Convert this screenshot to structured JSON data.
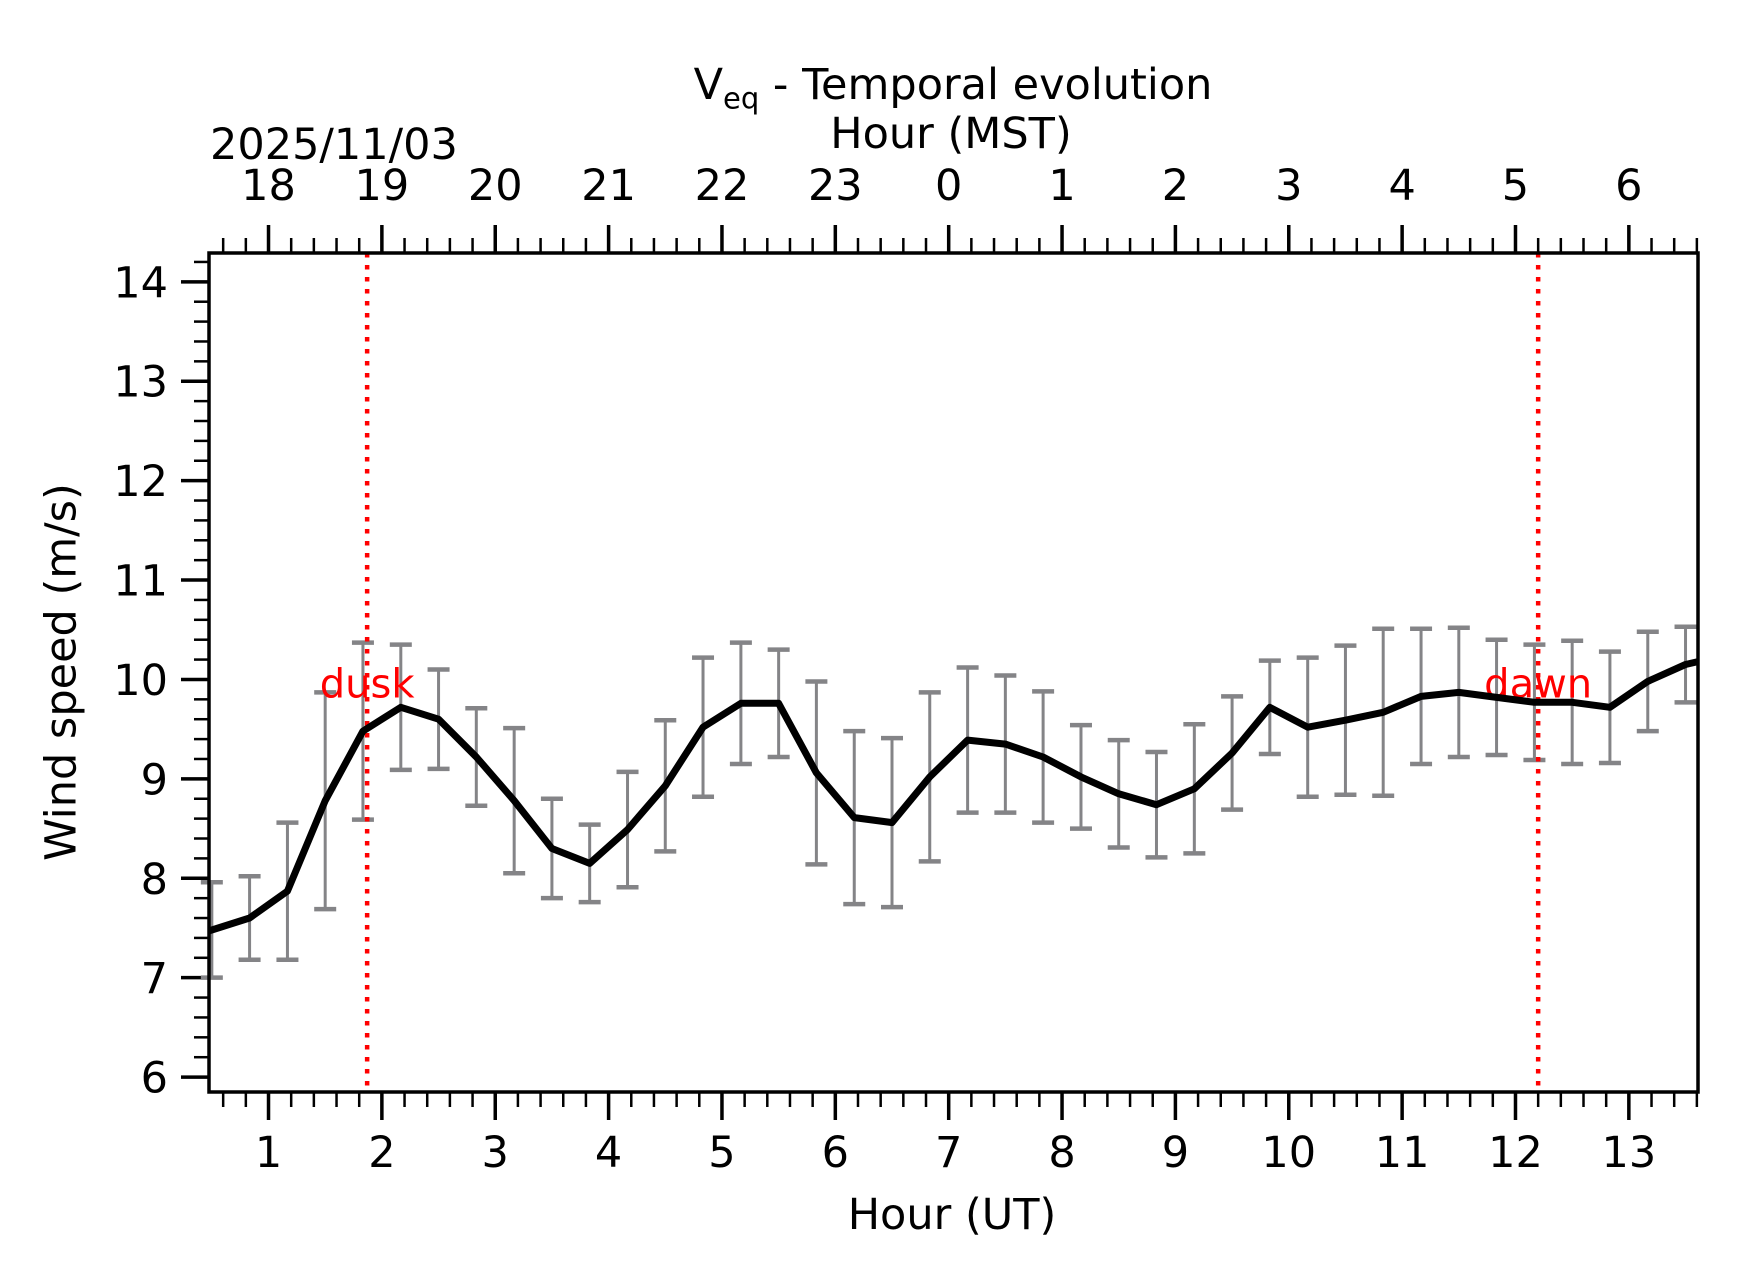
{
  "figure": {
    "title": {
      "prefix": "V",
      "subscript": "eq",
      "suffix": " - Temporal evolution"
    },
    "date_label": "2025/11/03",
    "top_axis_label": "Hour (MST)",
    "bottom_axis_label": "Hour (UT)",
    "y_axis_label": "Wind speed (m/s)"
  },
  "chart_data": {
    "type": "line",
    "title": "V_eq - Temporal evolution",
    "date": "2025/11/03",
    "xlabel": "Hour (UT)",
    "x2label": "Hour (MST)",
    "ylabel": "Wind speed (m/s)",
    "xlim": [
      0.475,
      13.61
    ],
    "ylim": [
      5.85,
      14.29
    ],
    "grid": false,
    "legend": null,
    "xticks": [
      1,
      2,
      3,
      4,
      5,
      6,
      7,
      8,
      9,
      10,
      11,
      12,
      13
    ],
    "xtick_labels_bottom": [
      "1",
      "2",
      "3",
      "4",
      "5",
      "6",
      "7",
      "8",
      "9",
      "10",
      "11",
      "12",
      "13"
    ],
    "xtick_labels_top": [
      "18",
      "19",
      "20",
      "21",
      "22",
      "23",
      "0",
      "1",
      "2",
      "3",
      "4",
      "5",
      "6"
    ],
    "yticks": [
      6,
      7,
      8,
      9,
      10,
      11,
      12,
      13,
      14
    ],
    "ytick_labels": [
      "6",
      "7",
      "8",
      "9",
      "10",
      "11",
      "12",
      "13",
      "14"
    ],
    "minor_tick_step_x": 0.2,
    "minor_tick_step_y": 0.2,
    "x": [
      0.5,
      0.833,
      1.167,
      1.5,
      1.833,
      2.167,
      2.5,
      2.833,
      3.167,
      3.5,
      3.833,
      4.167,
      4.5,
      4.833,
      5.167,
      5.5,
      5.833,
      6.167,
      6.5,
      6.833,
      7.167,
      7.5,
      7.833,
      8.167,
      8.5,
      8.833,
      9.167,
      9.5,
      9.833,
      10.167,
      10.5,
      10.833,
      11.167,
      11.5,
      11.833,
      12.167,
      12.5,
      12.833,
      13.167,
      13.5
    ],
    "y": [
      7.48,
      7.6,
      7.87,
      8.78,
      9.48,
      9.72,
      9.6,
      9.22,
      8.78,
      8.3,
      8.15,
      8.49,
      8.93,
      9.52,
      9.76,
      9.76,
      9.06,
      8.61,
      8.56,
      9.02,
      9.39,
      9.35,
      9.22,
      9.02,
      8.85,
      8.74,
      8.9,
      9.26,
      9.72,
      9.52,
      9.59,
      9.67,
      9.83,
      9.87,
      9.82,
      9.77,
      9.77,
      9.72,
      9.98,
      10.15
    ],
    "yerr": [
      0.48,
      0.42,
      0.69,
      1.09,
      0.89,
      0.63,
      0.5,
      0.49,
      0.73,
      0.5,
      0.39,
      0.58,
      0.66,
      0.7,
      0.61,
      0.54,
      0.92,
      0.87,
      0.85,
      0.85,
      0.73,
      0.69,
      0.66,
      0.52,
      0.54,
      0.53,
      0.65,
      0.57,
      0.47,
      0.7,
      0.75,
      0.84,
      0.68,
      0.65,
      0.58,
      0.58,
      0.62,
      0.56,
      0.5,
      0.38
    ],
    "edge_extension": {
      "left": [
        0.475,
        7.47
      ],
      "right": [
        13.61,
        10.18
      ]
    },
    "annotations": [
      {
        "label": "dusk",
        "x": 1.87,
        "label_y": 10.0,
        "color": "#ff0000"
      },
      {
        "label": "dawn",
        "x": 12.2,
        "label_y": 10.0,
        "color": "#ff0000"
      }
    ],
    "colors": {
      "line": "#000000",
      "errorbar": "#848487",
      "axis": "#000000",
      "annotation": "#ff0000",
      "background": "#ffffff"
    }
  }
}
